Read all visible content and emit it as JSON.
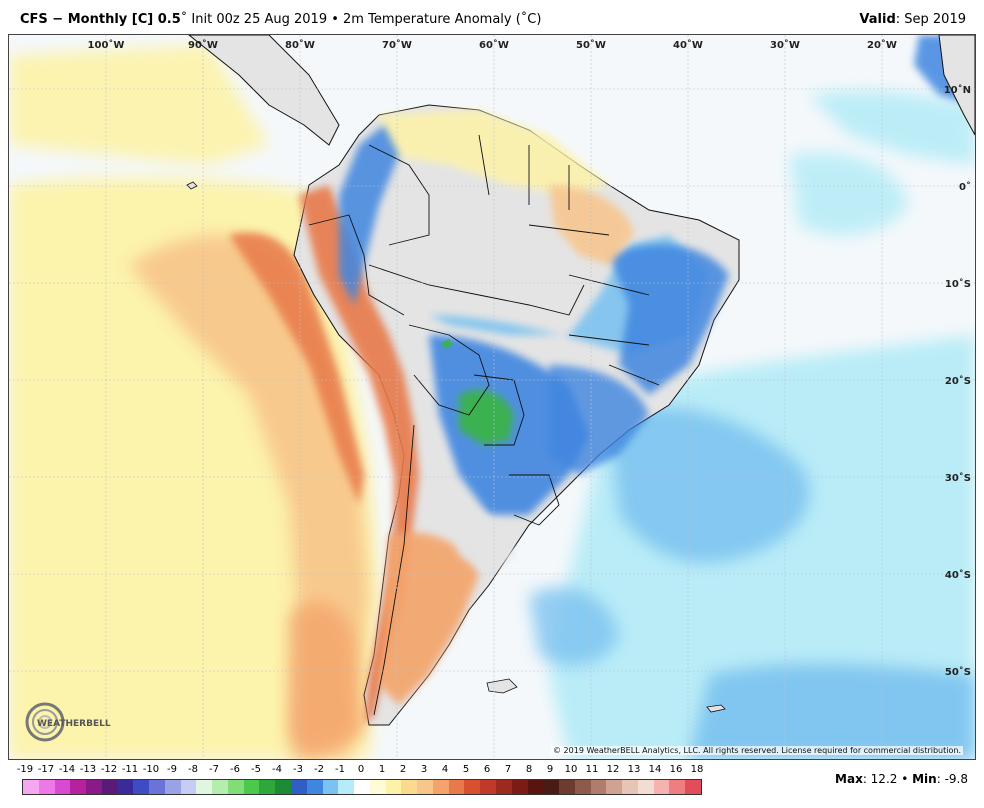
{
  "header": {
    "model": "CFS − Monthly [C] 0.5",
    "degree": "˚",
    "init": " Init 00z 25 Aug 2019 • 2m Temperature Anomaly (˚C)",
    "valid_label": "Valid",
    "valid_value": ": Sep 2019"
  },
  "map": {
    "lon_labels": [
      "100˚W",
      "90˚W",
      "80˚W",
      "70˚W",
      "60˚W",
      "50˚W",
      "40˚W",
      "30˚W",
      "20˚W"
    ],
    "lat_labels": [
      "10˚N",
      "0˚",
      "10˚S",
      "20˚S",
      "30˚S",
      "40˚S",
      "50˚S"
    ],
    "copyright": "© 2019 WeatherBELL Analytics, LLC. All rights reserved. License required for commercial distribution.",
    "logo_text": "WEATHERBELL",
    "colors": {
      "ocean_base": "#f4f8fb",
      "land_neutral": "#e4e4e4",
      "warm_light": "#fdf3a8",
      "warm_mid": "#f8c58a",
      "warm_strong": "#e8794a",
      "warm_peak": "#c0392b",
      "cool_light": "#b6ecf7",
      "cool_mid": "#7cc2f0",
      "cool_strong": "#3f86e0",
      "cool_peak": "#2f5fc6",
      "green": "#3bb34a",
      "coast": "#111111"
    }
  },
  "colorbar": {
    "labels": [
      "-19",
      "-17",
      "-14",
      "-13",
      "-12",
      "-11",
      "-10",
      "-9",
      "-8",
      "-7",
      "-6",
      "-5",
      "-4",
      "-3",
      "-2",
      "-1",
      "0",
      "1",
      "2",
      "3",
      "4",
      "5",
      "6",
      "7",
      "8",
      "9",
      "10",
      "11",
      "12",
      "13",
      "14",
      "16",
      "18"
    ],
    "colors": [
      "#f6a7f1",
      "#ee79e6",
      "#d84ad0",
      "#b6229e",
      "#8a1a88",
      "#5b1a7a",
      "#3a2a9a",
      "#3d4cc2",
      "#6a74d6",
      "#9aa2e6",
      "#c7ccf3",
      "#e0f6e0",
      "#b5ecb0",
      "#82dd78",
      "#4cc84a",
      "#2ea83a",
      "#1d8a34",
      "#2f5fc6",
      "#3f86e0",
      "#7cc2f0",
      "#b6ecf7",
      "#ffffff",
      "#fffbd6",
      "#fdf3a8",
      "#fbd98e",
      "#f8c58a",
      "#f4a46a",
      "#e8794a",
      "#d8502f",
      "#c0392b",
      "#9c2a1f",
      "#7a1c14",
      "#5a1410",
      "#4a1a14",
      "#6e3b30",
      "#8e5a4c",
      "#b07c6c",
      "#cfa292",
      "#e6c4b6",
      "#f3ddd2",
      "#f6b2b0",
      "#ef7e82",
      "#e34c5a"
    ]
  },
  "stats": {
    "max_label": "Max",
    "max_value": ": 12.2 • ",
    "min_label": "Min",
    "min_value": ": -9.8"
  }
}
